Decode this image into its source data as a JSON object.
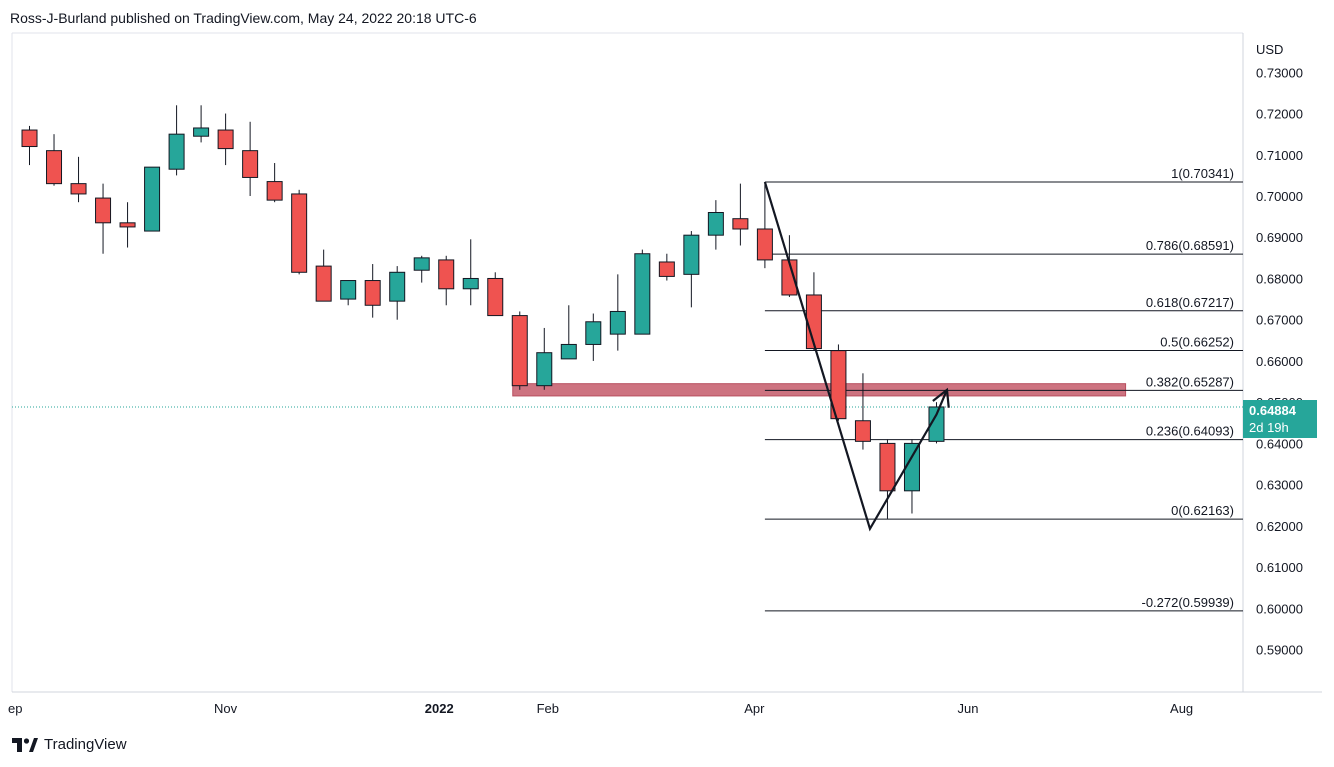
{
  "header": {
    "publisher": "Ross-J-Burland published on TradingView.com, May 24, 2022 20:18 UTC-6"
  },
  "footer": {
    "brand": "TradingView",
    "logo_icon": "tradingview-logo-icon"
  },
  "price_badge": {
    "price": "0.64884",
    "countdown": "2d 19h",
    "color": "#26a69a"
  },
  "colors": {
    "up": "#26a69a",
    "down": "#ef5350",
    "zone": "#c86472",
    "dotted_line": "#26a69a"
  },
  "chart_data": {
    "type": "candlestick",
    "timeframe": "weekly",
    "currency_label": "USD",
    "y_ticks": [
      "0.73000",
      "0.72000",
      "0.71000",
      "0.70000",
      "0.69000",
      "0.68000",
      "0.67000",
      "0.66000",
      "0.65000",
      "0.64000",
      "0.63000",
      "0.62000",
      "0.61000",
      "0.60000",
      "0.59000"
    ],
    "ylim": [
      0.5865,
      0.7325
    ],
    "x_labels": [
      {
        "label": "ep",
        "date": "2021-09-01"
      },
      {
        "label": "Nov",
        "date": "2021-11-01"
      },
      {
        "label": "2022",
        "date": "2022-01-01",
        "bold": true
      },
      {
        "label": "Feb",
        "date": "2022-02-01"
      },
      {
        "label": "Apr",
        "date": "2022-04-01"
      },
      {
        "label": "Jun",
        "date": "2022-06-01"
      },
      {
        "label": "Aug",
        "date": "2022-08-01"
      }
    ],
    "candles": [
      {
        "date": "2021-09-06",
        "open": 0.716,
        "high": 0.717,
        "low": 0.7075,
        "close": 0.712
      },
      {
        "date": "2021-09-13",
        "open": 0.711,
        "high": 0.715,
        "low": 0.7025,
        "close": 0.703
      },
      {
        "date": "2021-09-20",
        "open": 0.703,
        "high": 0.7095,
        "low": 0.6985,
        "close": 0.7005
      },
      {
        "date": "2021-09-27",
        "open": 0.6995,
        "high": 0.703,
        "low": 0.686,
        "close": 0.6935
      },
      {
        "date": "2021-10-04",
        "open": 0.6935,
        "high": 0.6985,
        "low": 0.6875,
        "close": 0.6925
      },
      {
        "date": "2021-10-11",
        "open": 0.6915,
        "high": 0.707,
        "low": 0.6915,
        "close": 0.707
      },
      {
        "date": "2021-10-18",
        "open": 0.7065,
        "high": 0.722,
        "low": 0.705,
        "close": 0.715
      },
      {
        "date": "2021-10-25",
        "open": 0.7145,
        "high": 0.722,
        "low": 0.713,
        "close": 0.7165
      },
      {
        "date": "2021-11-01",
        "open": 0.716,
        "high": 0.72,
        "low": 0.7075,
        "close": 0.7115
      },
      {
        "date": "2021-11-08",
        "open": 0.711,
        "high": 0.718,
        "low": 0.7,
        "close": 0.7045
      },
      {
        "date": "2021-11-15",
        "open": 0.7035,
        "high": 0.708,
        "low": 0.6985,
        "close": 0.699
      },
      {
        "date": "2021-11-22",
        "open": 0.7005,
        "high": 0.7015,
        "low": 0.681,
        "close": 0.6815
      },
      {
        "date": "2021-11-29",
        "open": 0.683,
        "high": 0.687,
        "low": 0.6745,
        "close": 0.6745
      },
      {
        "date": "2021-12-06",
        "open": 0.675,
        "high": 0.6795,
        "low": 0.6735,
        "close": 0.6795
      },
      {
        "date": "2021-12-13",
        "open": 0.6795,
        "high": 0.6835,
        "low": 0.6705,
        "close": 0.6735
      },
      {
        "date": "2021-12-20",
        "open": 0.6745,
        "high": 0.683,
        "low": 0.67,
        "close": 0.6815
      },
      {
        "date": "2021-12-27",
        "open": 0.682,
        "high": 0.6855,
        "low": 0.679,
        "close": 0.685
      },
      {
        "date": "2022-01-03",
        "open": 0.6845,
        "high": 0.6855,
        "low": 0.6735,
        "close": 0.6775
      },
      {
        "date": "2022-01-10",
        "open": 0.6775,
        "high": 0.6895,
        "low": 0.6735,
        "close": 0.68
      },
      {
        "date": "2022-01-17",
        "open": 0.68,
        "high": 0.6815,
        "low": 0.671,
        "close": 0.671
      },
      {
        "date": "2022-01-24",
        "open": 0.671,
        "high": 0.672,
        "low": 0.653,
        "close": 0.654
      },
      {
        "date": "2022-01-31",
        "open": 0.654,
        "high": 0.668,
        "low": 0.653,
        "close": 0.662
      },
      {
        "date": "2022-02-07",
        "open": 0.6605,
        "high": 0.6735,
        "low": 0.6605,
        "close": 0.664
      },
      {
        "date": "2022-02-14",
        "open": 0.664,
        "high": 0.6715,
        "low": 0.66,
        "close": 0.6695
      },
      {
        "date": "2022-02-21",
        "open": 0.6665,
        "high": 0.681,
        "low": 0.6625,
        "close": 0.672
      },
      {
        "date": "2022-02-28",
        "open": 0.6665,
        "high": 0.687,
        "low": 0.6665,
        "close": 0.686
      },
      {
        "date": "2022-03-07",
        "open": 0.684,
        "high": 0.686,
        "low": 0.6795,
        "close": 0.6805
      },
      {
        "date": "2022-03-14",
        "open": 0.681,
        "high": 0.6915,
        "low": 0.673,
        "close": 0.6905
      },
      {
        "date": "2022-03-21",
        "open": 0.6905,
        "high": 0.699,
        "low": 0.687,
        "close": 0.696
      },
      {
        "date": "2022-03-28",
        "open": 0.6945,
        "high": 0.703,
        "low": 0.688,
        "close": 0.692
      },
      {
        "date": "2022-04-04",
        "open": 0.692,
        "high": 0.703,
        "low": 0.6825,
        "close": 0.6845
      },
      {
        "date": "2022-04-11",
        "open": 0.6845,
        "high": 0.6905,
        "low": 0.6755,
        "close": 0.676
      },
      {
        "date": "2022-04-18",
        "open": 0.676,
        "high": 0.6815,
        "low": 0.6625,
        "close": 0.663
      },
      {
        "date": "2022-04-25",
        "open": 0.6625,
        "high": 0.664,
        "low": 0.6455,
        "close": 0.646
      },
      {
        "date": "2022-05-02",
        "open": 0.6455,
        "high": 0.657,
        "low": 0.6385,
        "close": 0.6405
      },
      {
        "date": "2022-05-09",
        "open": 0.64,
        "high": 0.641,
        "low": 0.6217,
        "close": 0.6285
      },
      {
        "date": "2022-05-16",
        "open": 0.6285,
        "high": 0.641,
        "low": 0.623,
        "close": 0.64
      },
      {
        "date": "2022-05-23",
        "open": 0.6405,
        "high": 0.65,
        "low": 0.64,
        "close": 0.64884
      }
    ],
    "fibonacci": {
      "high": 0.70341,
      "low": 0.62163,
      "levels": [
        {
          "ratio": "1",
          "price": 0.70341,
          "label": "1(0.70341)"
        },
        {
          "ratio": "0.786",
          "price": 0.68591,
          "label": "0.786(0.68591)"
        },
        {
          "ratio": "0.618",
          "price": 0.67217,
          "label": "0.618(0.67217)"
        },
        {
          "ratio": "0.5",
          "price": 0.66252,
          "label": "0.5(0.66252)"
        },
        {
          "ratio": "0.382",
          "price": 0.65287,
          "label": "0.382(0.65287)"
        },
        {
          "ratio": "0.236",
          "price": 0.64093,
          "label": "0.236(0.64093)"
        },
        {
          "ratio": "0",
          "price": 0.62163,
          "label": "0(0.62163)"
        },
        {
          "ratio": "-0.272",
          "price": 0.59939,
          "label": "-0.272(0.59939)"
        }
      ],
      "start_date": "2022-04-04",
      "end_date": "2022-08-30"
    },
    "resistance_zone": {
      "top": 0.654,
      "bottom": 0.652,
      "start_date": "2022-01-22",
      "end_date": "2022-07-16"
    },
    "drawn_path": [
      {
        "date": "2022-04-04",
        "price": 0.7034
      },
      {
        "date": "2022-05-04",
        "price": 0.6193
      },
      {
        "date": "2022-05-23",
        "price": 0.647
      },
      {
        "date": "2022-05-26",
        "price": 0.653
      }
    ],
    "current_price": 0.64884
  }
}
